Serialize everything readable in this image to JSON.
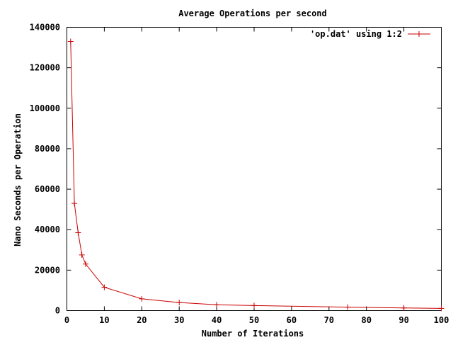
{
  "chart_data": {
    "type": "line",
    "title": "Average Operations per second",
    "xlabel": "Number of Iterations",
    "ylabel": "Nano Seconds per Operation",
    "xlim": [
      0,
      100
    ],
    "ylim": [
      0,
      140000
    ],
    "xticks": [
      "0",
      "10",
      "20",
      "30",
      "40",
      "50",
      "60",
      "70",
      "80",
      "90",
      "100"
    ],
    "yticks": [
      "0",
      "20000",
      "40000",
      "60000",
      "80000",
      "100000",
      "120000",
      "140000"
    ],
    "grid": false,
    "legend_position": "top-right",
    "series": [
      {
        "name": "'op.dat' using 1:2",
        "color": "#cc0000",
        "marker": "plus",
        "x": [
          1,
          2,
          3,
          4,
          5,
          10,
          20,
          30,
          40,
          50,
          75,
          90,
          100
        ],
        "y": [
          133000,
          53000,
          38500,
          27500,
          23000,
          11500,
          5800,
          4000,
          2900,
          2500,
          1700,
          1300,
          1100
        ]
      }
    ]
  }
}
